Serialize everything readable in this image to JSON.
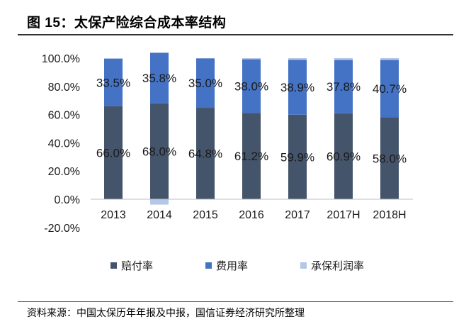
{
  "title": "图 15：太保产险综合成本率结构",
  "source": "资料来源：中国太保历年年报及中报，国信证券经济研究所整理",
  "chart_data": {
    "type": "bar",
    "stacked": true,
    "title": "图 15：太保产险综合成本率结构",
    "xlabel": "",
    "ylabel": "",
    "categories": [
      "2013",
      "2014",
      "2015",
      "2016",
      "2017",
      "2017H",
      "2018H"
    ],
    "ylim": [
      -20,
      100
    ],
    "yticks": [
      100,
      80,
      60,
      40,
      20,
      0,
      -20
    ],
    "ytick_labels": [
      "100.0%",
      "80.0%",
      "60.0%",
      "40.0%",
      "20.0%",
      "0.0%",
      "-20.0%"
    ],
    "grid": false,
    "legend": "bottom",
    "series": [
      {
        "name": "赔付率",
        "color": "#44546A",
        "values": [
          66.0,
          68.0,
          64.8,
          61.2,
          59.9,
          60.9,
          58.0
        ],
        "data_labels": [
          "66.0%",
          "68.0%",
          "64.8%",
          "61.2%",
          "59.9%",
          "60.9%",
          "58.0%"
        ]
      },
      {
        "name": "费用率",
        "color": "#4472C4",
        "values": [
          33.5,
          35.8,
          35.0,
          38.0,
          38.9,
          37.8,
          40.7
        ],
        "data_labels": [
          "33.5%",
          "35.8%",
          "35.0%",
          "38.0%",
          "38.9%",
          "37.8%",
          "40.7%"
        ]
      },
      {
        "name": "承保利润率",
        "color": "#B4C7E7",
        "values": [
          0.5,
          -3.8,
          0.2,
          0.8,
          1.2,
          1.3,
          1.3
        ],
        "data_labels": []
      }
    ]
  }
}
